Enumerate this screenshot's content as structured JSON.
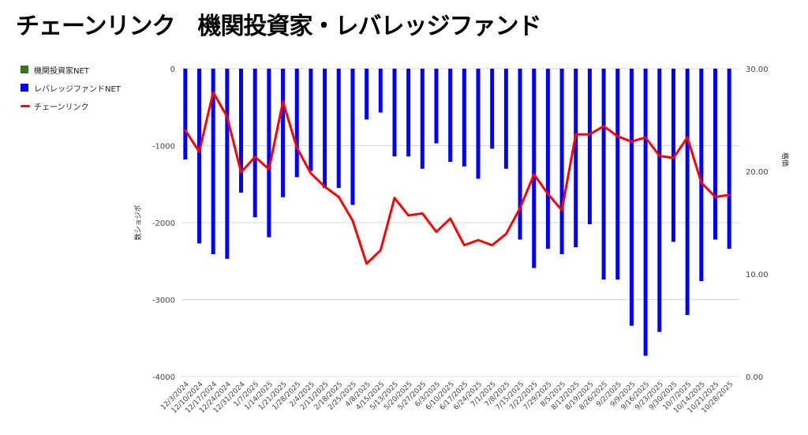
{
  "chart_data": {
    "type": "bar+line",
    "title": "チェーンリンク　機関投資家・レバレッジファンド",
    "categories": [
      "12/3/2024",
      "12/10/2024",
      "12/17/2024",
      "12/24/2024",
      "12/31/2024",
      "1/7/2025",
      "1/14/2025",
      "1/21/2025",
      "1/28/2025",
      "2/4/2025",
      "2/11/2025",
      "2/18/2025",
      "2/25/2025",
      "4/8/2025",
      "4/15/2025",
      "5/13/2025",
      "5/20/2025",
      "5/27/2025",
      "6/3/2025",
      "6/10/2025",
      "6/17/2025",
      "6/24/2025",
      "7/1/2025",
      "7/8/2025",
      "7/15/2025",
      "7/22/2025",
      "7/29/2025",
      "8/5/2025",
      "8/12/2025",
      "8/19/2025",
      "8/26/2025",
      "9/2/2025",
      "9/9/2025",
      "9/16/2025",
      "9/23/2025",
      "9/30/2025",
      "10/7/2025",
      "10/14/2025",
      "10/21/2025",
      "10/28/2025"
    ],
    "series": [
      {
        "name": "機関投資家NET",
        "kind": "bar",
        "axis": "left",
        "color": "#38761d",
        "values": [
          0,
          0,
          0,
          0,
          0,
          0,
          0,
          0,
          0,
          0,
          0,
          0,
          0,
          0,
          0,
          0,
          0,
          0,
          0,
          0,
          0,
          0,
          0,
          0,
          0,
          0,
          0,
          0,
          0,
          0,
          0,
          0,
          0,
          0,
          0,
          0,
          0,
          0,
          0,
          0
        ]
      },
      {
        "name": "レバレッジファンドNET",
        "kind": "bar",
        "axis": "left",
        "color": "#0000ff",
        "values": [
          -1180,
          -2270,
          -2410,
          -2470,
          -1610,
          -1930,
          -2190,
          -1670,
          -1410,
          -1330,
          -1550,
          -1550,
          -1770,
          -660,
          -570,
          -1140,
          -1140,
          -1300,
          -970,
          -1210,
          -1270,
          -1430,
          -1040,
          -1300,
          -2220,
          -2590,
          -2340,
          -2410,
          -2320,
          -2020,
          -2740,
          -2740,
          -3340,
          -3730,
          -3420,
          -2250,
          -3200,
          -2760,
          -2220,
          -2340
        ]
      },
      {
        "name": "チェーンリンク",
        "kind": "line",
        "axis": "right",
        "color": "#ff0000",
        "values": [
          24.0,
          21.9,
          27.7,
          25.3,
          19.9,
          21.4,
          20.2,
          26.8,
          22.3,
          19.8,
          18.5,
          17.5,
          15.2,
          11.0,
          12.3,
          17.4,
          15.7,
          15.9,
          14.1,
          15.4,
          12.8,
          13.3,
          12.8,
          13.9,
          16.4,
          19.7,
          17.8,
          16.2,
          23.6,
          23.6,
          24.4,
          23.4,
          22.9,
          23.3,
          21.5,
          21.3,
          23.3,
          18.9,
          17.5,
          17.7
        ]
      }
    ],
    "y_left": {
      "label": "数ショジポ",
      "ticks": [
        0,
        -1000,
        -2000,
        -3000,
        -4000
      ],
      "range": [
        -4000,
        0
      ]
    },
    "y_right": {
      "label": "格価",
      "ticks": [
        "30.00",
        "20.00",
        "10.00",
        "0.00"
      ],
      "range": [
        0,
        30
      ]
    },
    "grid": true,
    "legend_position": "top-left"
  },
  "colors": {
    "grid": "#d9d9d9",
    "axis_text": "#444444"
  }
}
